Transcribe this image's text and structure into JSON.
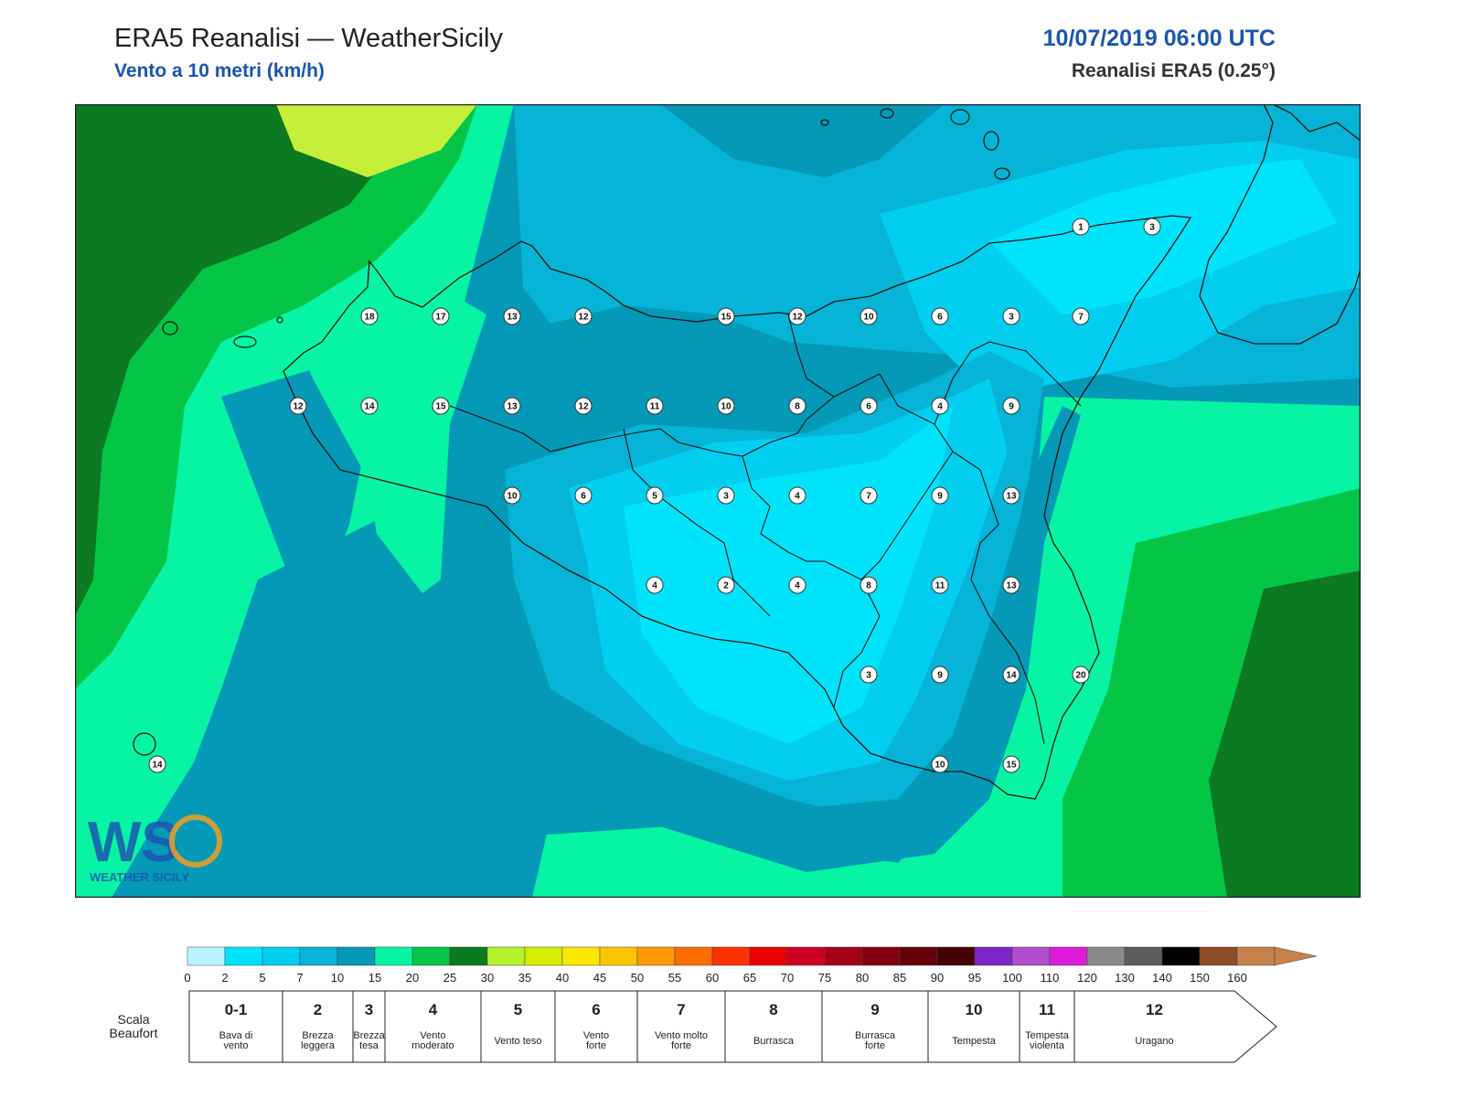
{
  "header": {
    "title": "ERA5 Reanalisi — WeatherSicily",
    "subtitle": "Vento a 10 metri (km/h)",
    "datetime": "10/07/2019 06:00 UTC",
    "source": "Reanalisi ERA5 (0.25°)"
  },
  "map": {
    "region": "Sicily",
    "fields": {
      "pale_lime": "#c6ef3a",
      "dark_green": "#0b7a20",
      "green": "#05c546",
      "aquamarine": "#06f4a4",
      "teal": "#0499b7",
      "cyan_mid": "#05b4d6",
      "cyan_light": "#02cff0",
      "cyan_bright": "#00e4fb"
    },
    "stations": [
      {
        "value": "1"
      },
      {
        "value": "3"
      },
      {
        "value": "18"
      },
      {
        "value": "17"
      },
      {
        "value": "13"
      },
      {
        "value": "12"
      },
      {
        "value": "15"
      },
      {
        "value": "12"
      },
      {
        "value": "10"
      },
      {
        "value": "6"
      },
      {
        "value": "3"
      },
      {
        "value": "7"
      },
      {
        "value": "12"
      },
      {
        "value": "14"
      },
      {
        "value": "15"
      },
      {
        "value": "13"
      },
      {
        "value": "12"
      },
      {
        "value": "11"
      },
      {
        "value": "10"
      },
      {
        "value": "8"
      },
      {
        "value": "6"
      },
      {
        "value": "4"
      },
      {
        "value": "9"
      },
      {
        "value": "10"
      },
      {
        "value": "6"
      },
      {
        "value": "5"
      },
      {
        "value": "3"
      },
      {
        "value": "4"
      },
      {
        "value": "7"
      },
      {
        "value": "9"
      },
      {
        "value": "13"
      },
      {
        "value": "4"
      },
      {
        "value": "2"
      },
      {
        "value": "4"
      },
      {
        "value": "8"
      },
      {
        "value": "11"
      },
      {
        "value": "13"
      },
      {
        "value": "3"
      },
      {
        "value": "9"
      },
      {
        "value": "14"
      },
      {
        "value": "20"
      },
      {
        "value": "10"
      },
      {
        "value": "15"
      },
      {
        "value": "14"
      }
    ],
    "logo_text": "WEATHER SICILY"
  },
  "legend": {
    "colors": [
      "#b8f4ff",
      "#00e4fb",
      "#02cff0",
      "#05b4d6",
      "#0499b7",
      "#06f4a4",
      "#05c546",
      "#0b7a20",
      "#b5f22a",
      "#d6ee00",
      "#fde800",
      "#fdc500",
      "#fd9a00",
      "#fd6c00",
      "#fc3300",
      "#ea0000",
      "#cc0020",
      "#a60016",
      "#840011",
      "#64000a",
      "#450003",
      "#7a26c9",
      "#b24ecd",
      "#de1bd8",
      "#8a8a8a",
      "#5c5c5c",
      "#000000",
      "#8c4d28",
      "#c7814a"
    ],
    "ticks": [
      "0",
      "2",
      "5",
      "7",
      "10",
      "15",
      "20",
      "25",
      "30",
      "35",
      "40",
      "45",
      "50",
      "55",
      "60",
      "65",
      "70",
      "75",
      "80",
      "85",
      "90",
      "95",
      "100",
      "110",
      "120",
      "130",
      "140",
      "150",
      "160"
    ],
    "beaufort_title_1": "Scala",
    "beaufort_title_2": "Beaufort",
    "beaufort": [
      {
        "num": "0-1",
        "l1": "Bava di",
        "l2": "vento"
      },
      {
        "num": "2",
        "l1": "Brezza",
        "l2": "leggera"
      },
      {
        "num": "3",
        "l1": "Brezza",
        "l2": "tesa"
      },
      {
        "num": "4",
        "l1": "Vento",
        "l2": "moderato"
      },
      {
        "num": "5",
        "l1": "Vento teso",
        "l2": ""
      },
      {
        "num": "6",
        "l1": "Vento",
        "l2": "forte"
      },
      {
        "num": "7",
        "l1": "Vento molto",
        "l2": "forte"
      },
      {
        "num": "8",
        "l1": "Burrasca",
        "l2": ""
      },
      {
        "num": "9",
        "l1": "Burrasca",
        "l2": "forte"
      },
      {
        "num": "10",
        "l1": "Tempesta",
        "l2": ""
      },
      {
        "num": "11",
        "l1": "Tempesta",
        "l2": "violenta"
      },
      {
        "num": "12",
        "l1": "Uragano",
        "l2": ""
      }
    ]
  }
}
